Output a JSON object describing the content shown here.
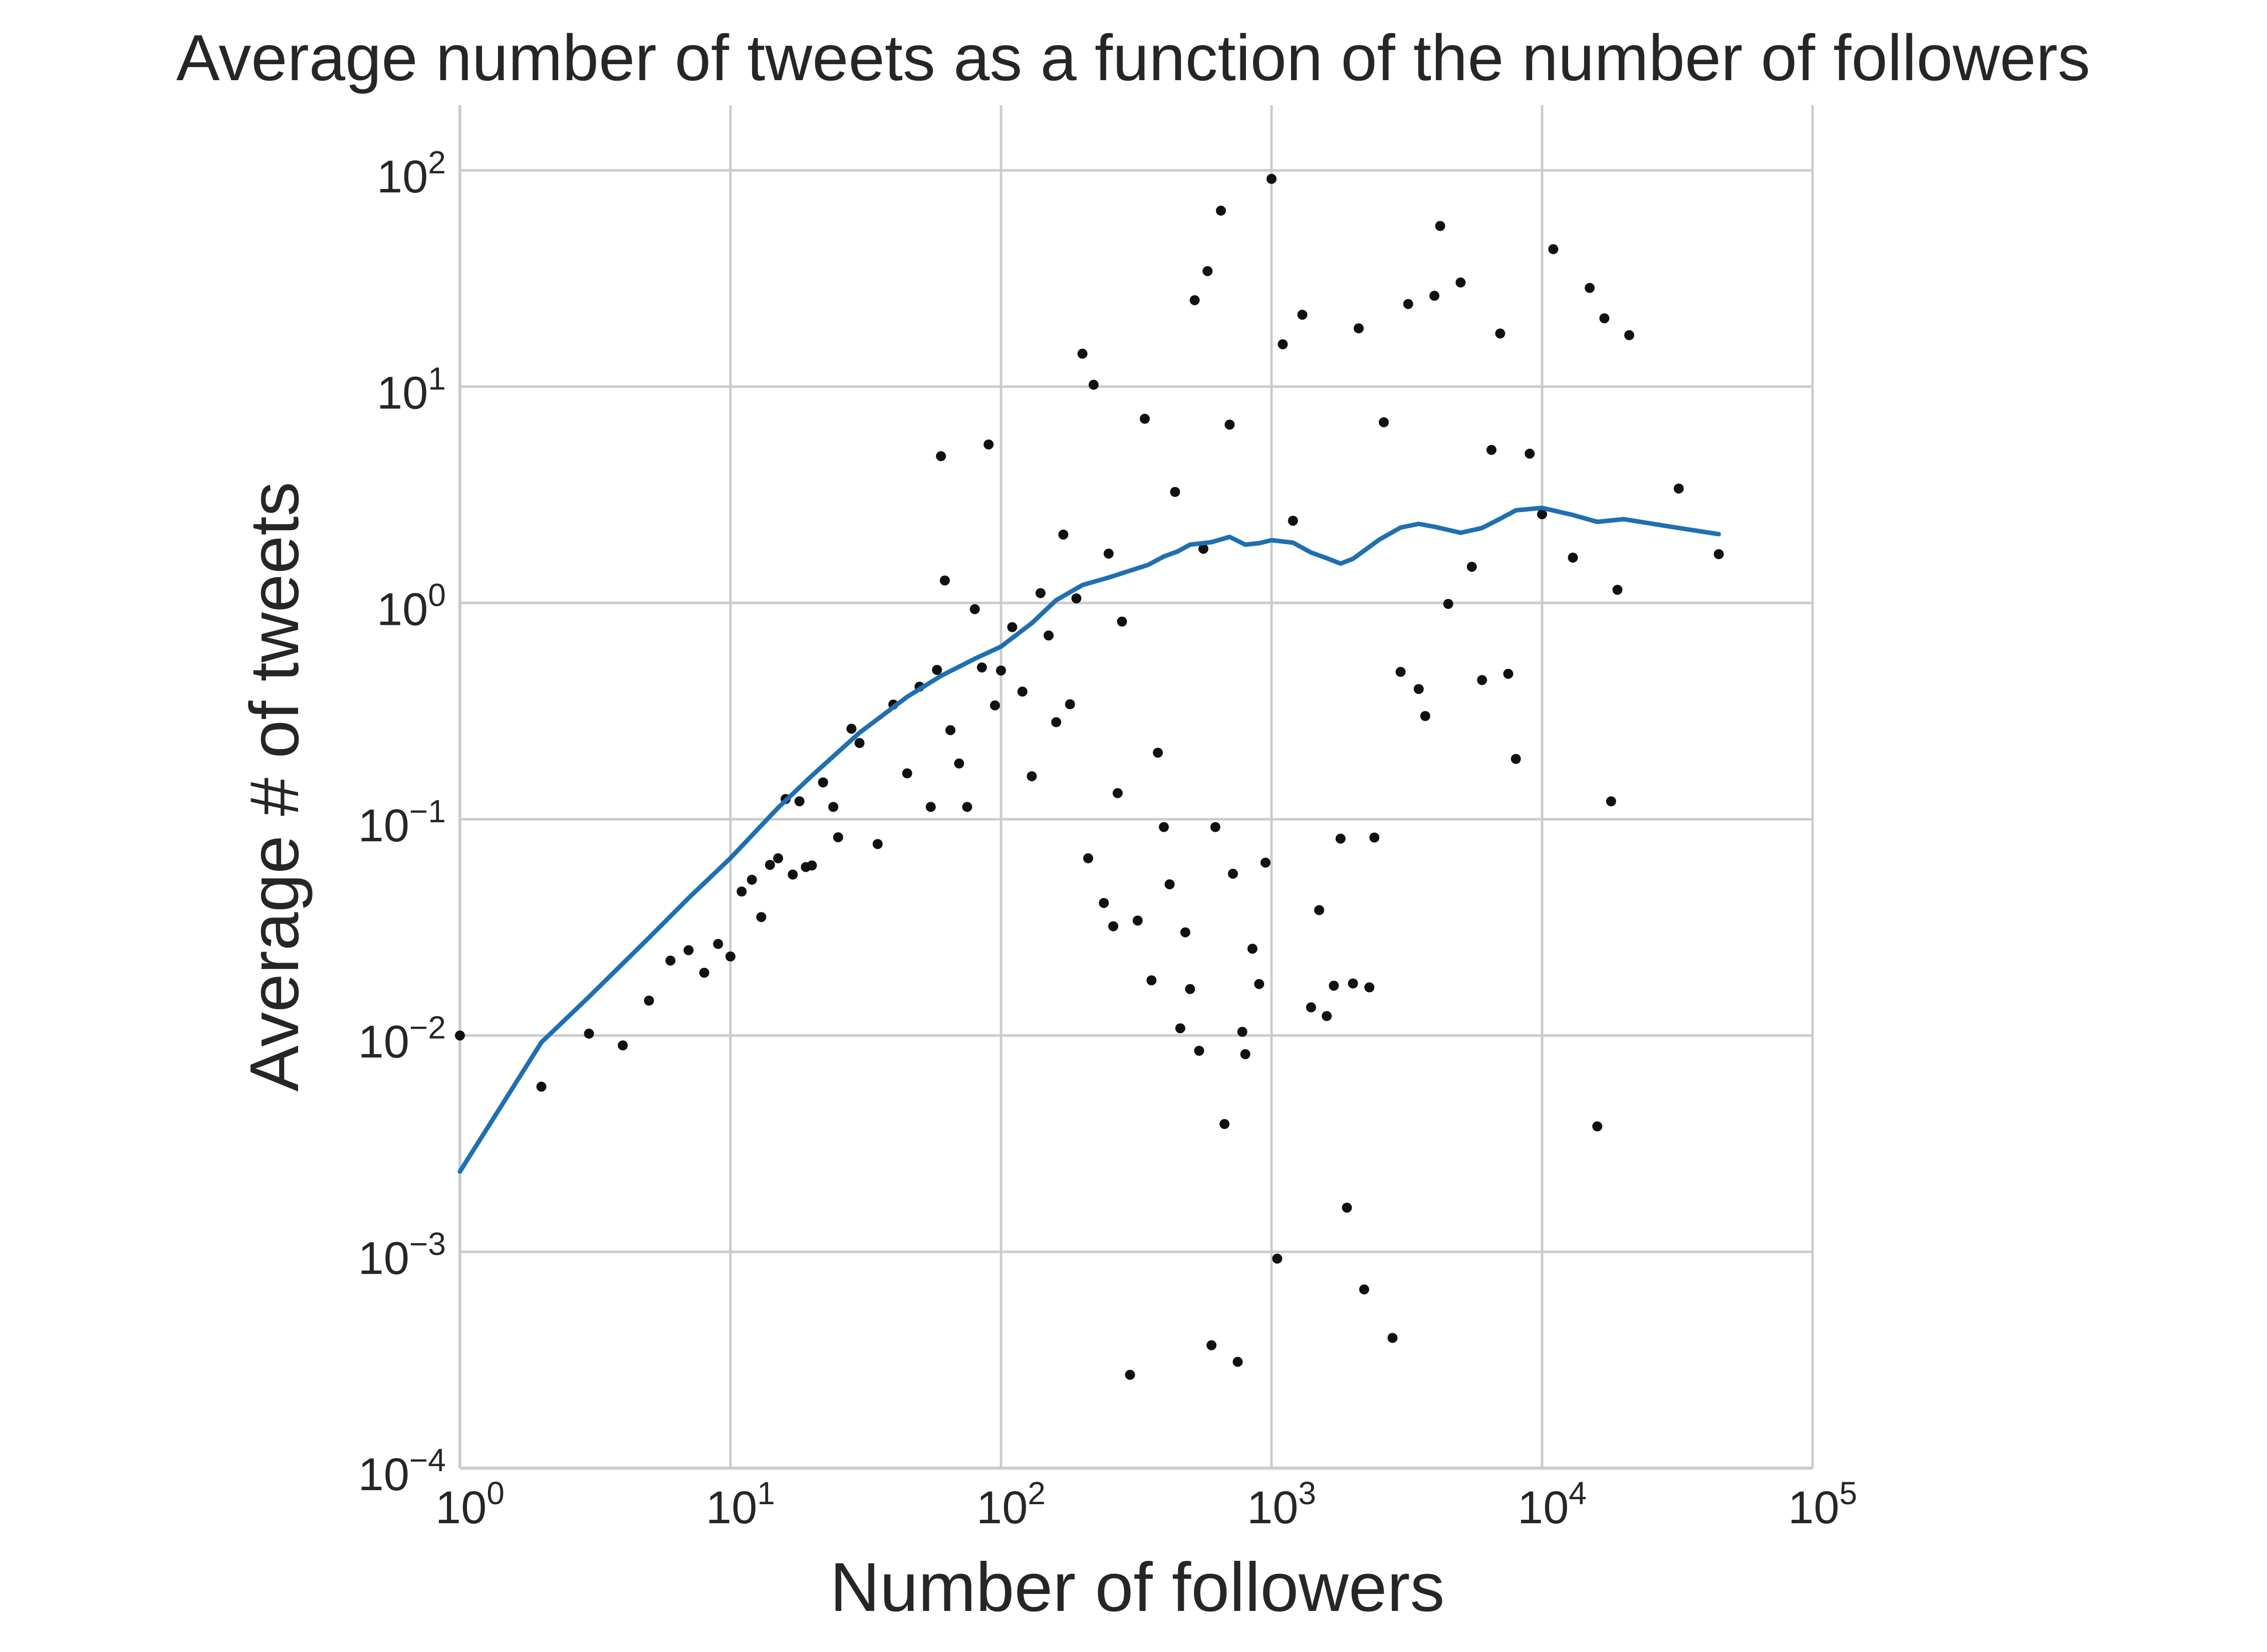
{
  "chart_data": {
    "type": "scatter",
    "title": "Average number of tweets as a function of the number of followers",
    "xlabel": "Number of followers",
    "ylabel": "Average # of tweets",
    "xscale": "log",
    "yscale": "log",
    "xlim": [
      1,
      100000
    ],
    "ylim": [
      0.0001,
      200
    ],
    "grid": true,
    "x_ticks": [
      {
        "base": "10",
        "exp": "0",
        "value": 1
      },
      {
        "base": "10",
        "exp": "1",
        "value": 10
      },
      {
        "base": "10",
        "exp": "2",
        "value": 100
      },
      {
        "base": "10",
        "exp": "3",
        "value": 1000
      },
      {
        "base": "10",
        "exp": "4",
        "value": 10000
      },
      {
        "base": "10",
        "exp": "5",
        "value": 100000
      }
    ],
    "y_ticks": [
      {
        "base": "10",
        "exp": "−4",
        "value": 0.0001
      },
      {
        "base": "10",
        "exp": "−3",
        "value": 0.001
      },
      {
        "base": "10",
        "exp": "−2",
        "value": 0.01
      },
      {
        "base": "10",
        "exp": "−1",
        "value": 0.1
      },
      {
        "base": "10",
        "exp": "0",
        "value": 1
      },
      {
        "base": "10",
        "exp": "1",
        "value": 10
      },
      {
        "base": "10",
        "exp": "2",
        "value": 100
      }
    ],
    "colors": {
      "points": "#111111",
      "line": "#1f6fb1",
      "grid": "#cccccc"
    },
    "series": [
      {
        "type": "scatter",
        "points": [
          [
            1,
            0.01
          ],
          [
            2,
            0.0058
          ],
          [
            3,
            0.0102
          ],
          [
            4,
            0.009
          ],
          [
            5,
            0.0145
          ],
          [
            6,
            0.0222
          ],
          [
            7,
            0.0248
          ],
          [
            8,
            0.0195
          ],
          [
            9,
            0.0265
          ],
          [
            10,
            0.0232
          ],
          [
            11,
            0.0463
          ],
          [
            12,
            0.0525
          ],
          [
            13,
            0.0353
          ],
          [
            14,
            0.0615
          ],
          [
            15,
            0.066
          ],
          [
            16,
            0.124
          ],
          [
            17,
            0.0555
          ],
          [
            18,
            0.121
          ],
          [
            19,
            0.0601
          ],
          [
            20,
            0.0611
          ],
          [
            22,
            0.148
          ],
          [
            24,
            0.114
          ],
          [
            25,
            0.0825
          ],
          [
            28,
            0.262
          ],
          [
            30,
            0.225
          ],
          [
            35,
            0.0768
          ],
          [
            40,
            0.339
          ],
          [
            45,
            0.163
          ],
          [
            50,
            0.41
          ],
          [
            55,
            0.114
          ],
          [
            58,
            0.49
          ],
          [
            60,
            4.77
          ],
          [
            62,
            1.27
          ],
          [
            65,
            0.258
          ],
          [
            70,
            0.181
          ],
          [
            75,
            0.114
          ],
          [
            80,
            0.936
          ],
          [
            85,
            0.503
          ],
          [
            90,
            5.4
          ],
          [
            95,
            0.336
          ],
          [
            100,
            0.487
          ],
          [
            110,
            0.773
          ],
          [
            120,
            0.389
          ],
          [
            130,
            0.158
          ],
          [
            140,
            1.11
          ],
          [
            150,
            0.707
          ],
          [
            160,
            0.281
          ],
          [
            170,
            2.07
          ],
          [
            180,
            0.34
          ],
          [
            190,
            1.05
          ],
          [
            200,
            14.2
          ],
          [
            210,
            0.066
          ],
          [
            220,
            10.2
          ],
          [
            240,
            0.041
          ],
          [
            250,
            1.69
          ],
          [
            260,
            0.032
          ],
          [
            270,
            0.132
          ],
          [
            280,
            0.82
          ],
          [
            300,
            0.00027
          ],
          [
            320,
            0.034
          ],
          [
            340,
            7.1
          ],
          [
            360,
            0.018
          ],
          [
            380,
            0.203
          ],
          [
            400,
            0.092
          ],
          [
            420,
            0.05
          ],
          [
            440,
            3.26
          ],
          [
            460,
            0.0108
          ],
          [
            480,
            0.03
          ],
          [
            500,
            0.0164
          ],
          [
            520,
            25.1
          ],
          [
            540,
            0.0085
          ],
          [
            560,
            1.78
          ],
          [
            580,
            34.2
          ],
          [
            600,
            0.00037
          ],
          [
            620,
            0.092
          ],
          [
            650,
            65.1
          ],
          [
            670,
            0.0039
          ],
          [
            700,
            6.67
          ],
          [
            720,
            0.056
          ],
          [
            750,
            0.00031
          ],
          [
            780,
            0.0104
          ],
          [
            800,
            0.0082
          ],
          [
            850,
            0.0252
          ],
          [
            900,
            0.0173
          ],
          [
            950,
            0.063
          ],
          [
            1000,
            91.3
          ],
          [
            1050,
            0.00093
          ],
          [
            1100,
            15.7
          ],
          [
            1200,
            2.4
          ],
          [
            1300,
            21.5
          ],
          [
            1400,
            0.0135
          ],
          [
            1500,
            0.038
          ],
          [
            1600,
            0.0123
          ],
          [
            1700,
            0.017
          ],
          [
            1800,
            0.0813
          ],
          [
            1900,
            0.0016
          ],
          [
            2000,
            0.0174
          ],
          [
            2100,
            18.6
          ],
          [
            2200,
            0.00067
          ],
          [
            2300,
            0.0167
          ],
          [
            2400,
            0.0823
          ],
          [
            2600,
            6.84
          ],
          [
            2800,
            0.0004
          ],
          [
            3000,
            0.48
          ],
          [
            3200,
            24.1
          ],
          [
            3500,
            0.4
          ],
          [
            3700,
            0.3
          ],
          [
            4000,
            26.3
          ],
          [
            4200,
            55.3
          ],
          [
            4500,
            0.99
          ],
          [
            5000,
            30.3
          ],
          [
            5500,
            1.47
          ],
          [
            6000,
            0.44
          ],
          [
            6500,
            5.1
          ],
          [
            7000,
            17.6
          ],
          [
            7500,
            0.47
          ],
          [
            8000,
            0.19
          ],
          [
            9000,
            4.9
          ],
          [
            10000,
            2.57
          ],
          [
            11000,
            43.2
          ],
          [
            13000,
            1.62
          ],
          [
            15000,
            28.6
          ],
          [
            16000,
            0.0038
          ],
          [
            17000,
            20.7
          ],
          [
            18000,
            0.121
          ],
          [
            19000,
            1.15
          ],
          [
            21000,
            17.3
          ],
          [
            32000,
            3.38
          ],
          [
            45000,
            1.68
          ]
        ]
      },
      {
        "type": "line",
        "points": [
          [
            1,
            0.00235
          ],
          [
            2,
            0.0093
          ],
          [
            3,
            0.0151
          ],
          [
            5,
            0.0283
          ],
          [
            7,
            0.0432
          ],
          [
            10,
            0.0661
          ],
          [
            15,
            0.113
          ],
          [
            20,
            0.159
          ],
          [
            30,
            0.251
          ],
          [
            45,
            0.368
          ],
          [
            60,
            0.46
          ],
          [
            80,
            0.552
          ],
          [
            100,
            0.628
          ],
          [
            130,
            0.806
          ],
          [
            160,
            1.03
          ],
          [
            200,
            1.21
          ],
          [
            250,
            1.31
          ],
          [
            300,
            1.41
          ],
          [
            350,
            1.5
          ],
          [
            400,
            1.64
          ],
          [
            450,
            1.73
          ],
          [
            500,
            1.86
          ],
          [
            600,
            1.91
          ],
          [
            700,
            2.02
          ],
          [
            800,
            1.86
          ],
          [
            900,
            1.89
          ],
          [
            1000,
            1.95
          ],
          [
            1200,
            1.9
          ],
          [
            1400,
            1.71
          ],
          [
            1600,
            1.61
          ],
          [
            1800,
            1.52
          ],
          [
            2000,
            1.6
          ],
          [
            2500,
            1.96
          ],
          [
            3000,
            2.23
          ],
          [
            3500,
            2.32
          ],
          [
            4000,
            2.25
          ],
          [
            5000,
            2.11
          ],
          [
            6000,
            2.22
          ],
          [
            7000,
            2.45
          ],
          [
            8000,
            2.68
          ],
          [
            10000,
            2.75
          ],
          [
            13000,
            2.55
          ],
          [
            16000,
            2.37
          ],
          [
            20000,
            2.44
          ],
          [
            30000,
            2.25
          ],
          [
            45000,
            2.08
          ]
        ]
      }
    ]
  }
}
